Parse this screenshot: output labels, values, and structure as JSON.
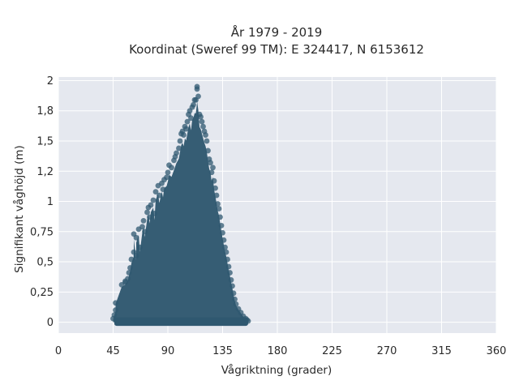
{
  "chart_data": {
    "type": "scatter",
    "title_line1": "År 1979 - 2019",
    "title_line2": "Koordinat (Sweref 99 TM): E 324417, N 6153612",
    "xlabel": "Vågriktning (grader)",
    "ylabel": "Signifikant våghöjd (m)",
    "xlim": [
      0,
      360
    ],
    "ylim": [
      -0.09,
      2.03
    ],
    "x_ticks": [
      0,
      45,
      90,
      135,
      180,
      225,
      270,
      315,
      360
    ],
    "x_tick_labels": [
      "0",
      "45",
      "90",
      "135",
      "180",
      "225",
      "270",
      "315",
      "360"
    ],
    "y_ticks": [
      0,
      0.25,
      0.5,
      0.75,
      1,
      1.25,
      1.5,
      1.75,
      2
    ],
    "y_tick_labels": [
      "0",
      "0,25",
      "0,5",
      "0,75",
      "1",
      "1,2",
      "1,5",
      "1,8",
      "2"
    ],
    "grid": true,
    "marker_color": "#2f5870",
    "plot_background": "#e5e8ef",
    "points": [
      [
        45,
        0.03
      ],
      [
        46,
        0.06
      ],
      [
        47,
        0.1
      ],
      [
        47,
        0.16
      ],
      [
        52,
        0.31
      ],
      [
        55,
        0.33
      ],
      [
        55,
        0.34
      ],
      [
        57,
        0.36
      ],
      [
        58,
        0.41
      ],
      [
        59,
        0.45
      ],
      [
        60,
        0.52
      ],
      [
        62,
        0.58
      ],
      [
        62,
        0.73
      ],
      [
        64,
        0.55
      ],
      [
        64,
        0.7
      ],
      [
        66,
        0.77
      ],
      [
        67,
        0.62
      ],
      [
        69,
        0.79
      ],
      [
        70,
        0.84
      ],
      [
        71,
        0.75
      ],
      [
        73,
        0.91
      ],
      [
        74,
        0.95
      ],
      [
        75,
        0.87
      ],
      [
        76,
        0.97
      ],
      [
        78,
        1.01
      ],
      [
        79,
        0.9
      ],
      [
        80,
        1.08
      ],
      [
        82,
        1.13
      ],
      [
        83,
        1.05
      ],
      [
        85,
        1.15
      ],
      [
        86,
        1.1
      ],
      [
        87,
        1.18
      ],
      [
        89,
        1.2
      ],
      [
        90,
        1.24
      ],
      [
        91,
        1.3
      ],
      [
        93,
        1.28
      ],
      [
        95,
        1.34
      ],
      [
        96,
        1.37
      ],
      [
        97,
        1.4
      ],
      [
        99,
        1.44
      ],
      [
        100,
        1.5
      ],
      [
        101,
        1.56
      ],
      [
        102,
        1.58
      ],
      [
        103,
        1.55
      ],
      [
        104,
        1.62
      ],
      [
        105,
        1.6
      ],
      [
        106,
        1.66
      ],
      [
        107,
        1.72
      ],
      [
        108,
        1.75
      ],
      [
        109,
        1.69
      ],
      [
        110,
        1.78
      ],
      [
        111,
        1.8
      ],
      [
        112,
        1.84
      ],
      [
        113,
        1.84
      ],
      [
        114,
        1.93
      ],
      [
        114,
        1.95
      ],
      [
        115,
        1.87
      ],
      [
        116,
        1.72
      ],
      [
        117,
        1.7
      ],
      [
        118,
        1.66
      ],
      [
        119,
        1.62
      ],
      [
        120,
        1.58
      ],
      [
        121,
        1.55
      ],
      [
        122,
        1.5
      ],
      [
        123,
        1.42
      ],
      [
        124,
        1.35
      ],
      [
        125,
        1.32
      ],
      [
        126,
        1.24
      ],
      [
        127,
        1.28
      ],
      [
        128,
        1.17
      ],
      [
        129,
        1.11
      ],
      [
        130,
        1.05
      ],
      [
        131,
        0.98
      ],
      [
        132,
        0.94
      ],
      [
        133,
        0.87
      ],
      [
        134,
        0.8
      ],
      [
        135,
        0.74
      ],
      [
        136,
        0.68
      ],
      [
        137,
        0.62
      ],
      [
        138,
        0.58
      ],
      [
        139,
        0.52
      ],
      [
        140,
        0.46
      ],
      [
        141,
        0.41
      ],
      [
        142,
        0.35
      ],
      [
        143,
        0.3
      ],
      [
        144,
        0.24
      ],
      [
        145,
        0.19
      ],
      [
        146,
        0.15
      ],
      [
        148,
        0.11
      ],
      [
        150,
        0.08
      ],
      [
        152,
        0.05
      ],
      [
        154,
        0.03
      ],
      [
        155,
        0.02
      ],
      [
        156,
        0.01
      ]
    ]
  }
}
